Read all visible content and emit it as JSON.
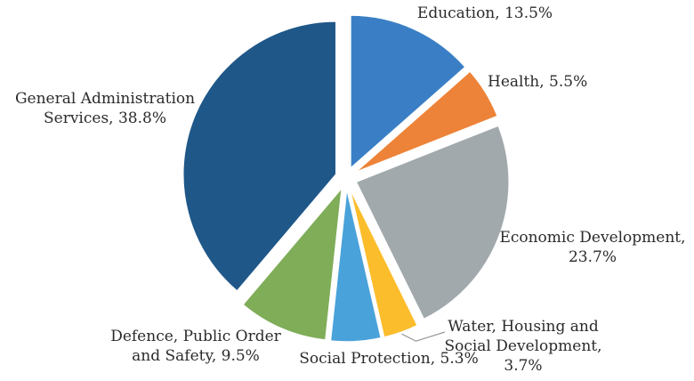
{
  "chart_data": {
    "type": "pie",
    "title": "",
    "slices": [
      {
        "label": "Education, 13.5%",
        "lines": [
          "Education, 13.5%"
        ],
        "value": 13.5,
        "color": "#3a7fc5"
      },
      {
        "label": "Health, 5.5%",
        "lines": [
          "Health, 5.5%"
        ],
        "value": 5.5,
        "color": "#ed8338"
      },
      {
        "label": "Economic Development, 23.7%",
        "lines": [
          "Economic Development,",
          "23.7%"
        ],
        "value": 23.7,
        "color": "#a1a9ad"
      },
      {
        "label": "Water, Housing and Social Development, 3.7%",
        "lines": [
          "Water, Housing and",
          "Social Development,",
          "3.7%"
        ],
        "value": 3.7,
        "color": "#fbbd2b"
      },
      {
        "label": "Social Protection, 5.3%",
        "lines": [
          "Social Protection, 5.3%"
        ],
        "value": 5.3,
        "color": "#4aa2da"
      },
      {
        "label": "Defence, Public Order and Safety, 9.5%",
        "lines": [
          "Defence, Public Order",
          "and Safety, 9.5%"
        ],
        "value": 9.5,
        "color": "#7fad58"
      },
      {
        "label": "General Administration Services, 38.8%",
        "lines": [
          "General Administration",
          "Services, 38.8%"
        ],
        "value": 38.8,
        "color": "#1f5788"
      }
    ],
    "start_angle_deg": 0,
    "direction": "clockwise",
    "exploded": true,
    "legend": "none"
  }
}
